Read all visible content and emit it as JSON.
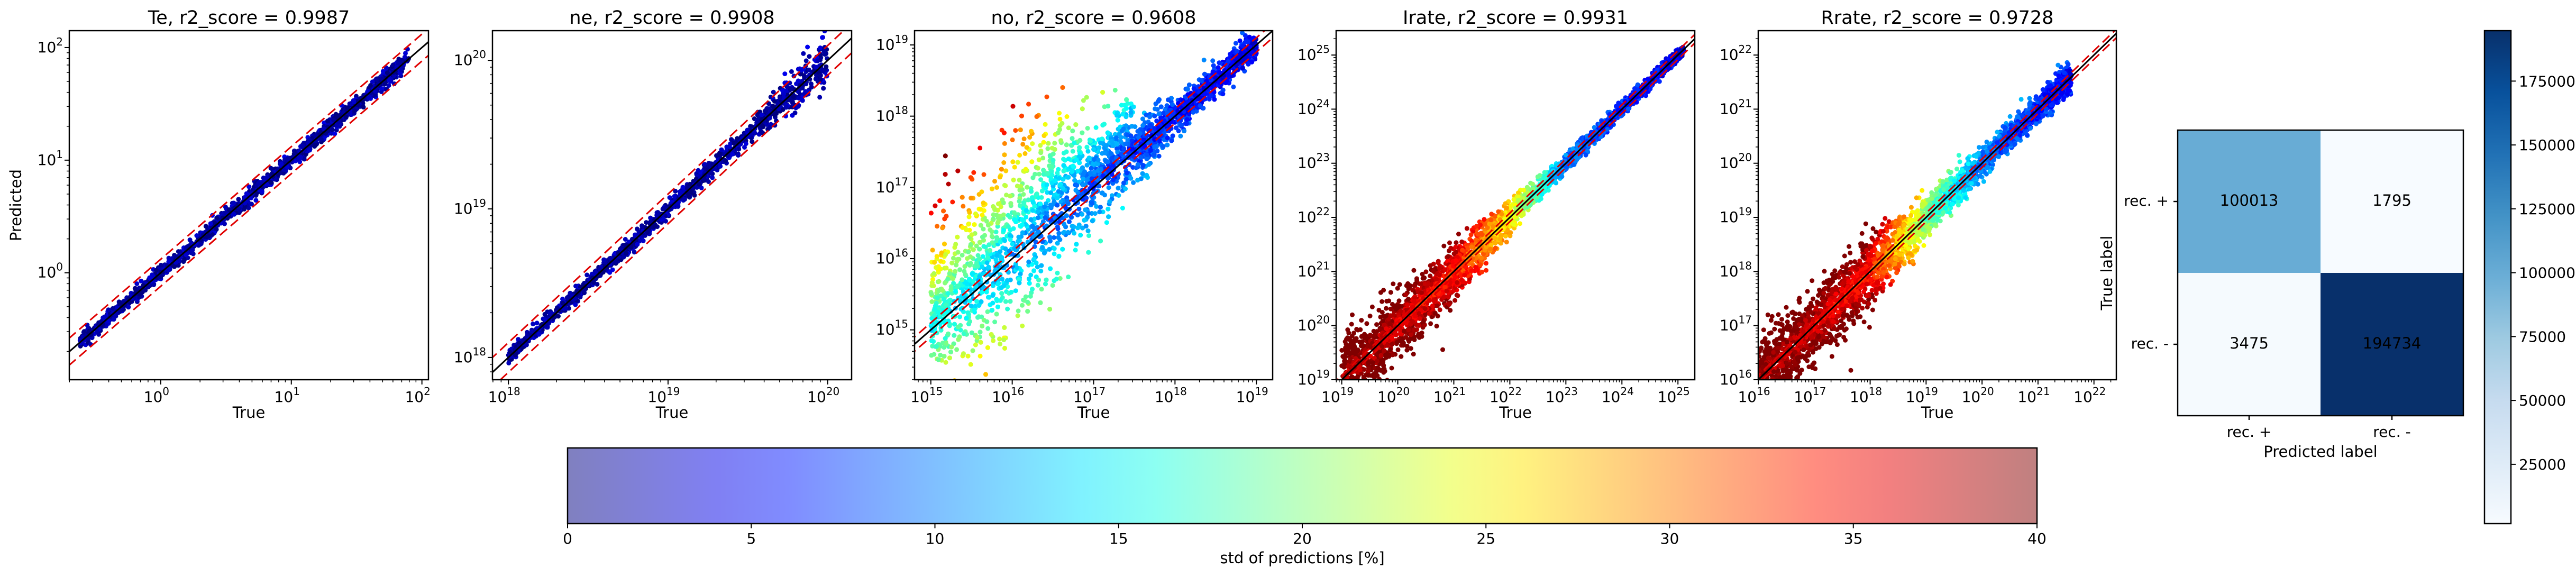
{
  "chart_data": [
    {
      "type": "scatter",
      "title": "Te, r2_score = 0.9987",
      "xlabel": "True",
      "ylabel": "Predicted",
      "log_scale": true,
      "xlim_exp": [
        -0.7,
        2.05
      ],
      "ylim_exp": [
        -0.95,
        2.15
      ],
      "x_ticks": [
        {
          "exp": 0,
          "label": "10",
          "sup": "0"
        },
        {
          "exp": 1,
          "label": "10",
          "sup": "1"
        },
        {
          "exp": 2,
          "label": "10",
          "sup": "2"
        }
      ],
      "y_ticks": [
        {
          "exp": 0,
          "label": "10",
          "sup": "0"
        },
        {
          "exp": 1,
          "label": "10",
          "sup": "1"
        },
        {
          "exp": 2,
          "label": "10",
          "sup": "2"
        }
      ],
      "data_range_exp": [
        -0.62,
        1.9
      ],
      "band_dex": 0.12,
      "spread": [
        [
          -0.62,
          0.03
        ],
        [
          1.9,
          0.04
        ]
      ],
      "color_profile": [
        [
          -0.62,
          1
        ],
        [
          1.9,
          1
        ]
      ],
      "point_count": 1200,
      "points_min_exp": -0.62,
      "points_max_exp": 1.9
    },
    {
      "type": "scatter",
      "title": "ne, r2_score = 0.9908",
      "xlabel": "True",
      "ylabel": "",
      "log_scale": true,
      "xlim_exp": [
        17.9,
        20.15
      ],
      "ylim_exp": [
        17.85,
        20.2
      ],
      "x_ticks": [
        {
          "exp": 18,
          "label": "10",
          "sup": "18"
        },
        {
          "exp": 19,
          "label": "10",
          "sup": "19"
        },
        {
          "exp": 20,
          "label": "10",
          "sup": "20"
        }
      ],
      "y_ticks": [
        {
          "exp": 18,
          "label": "10",
          "sup": "18"
        },
        {
          "exp": 19,
          "label": "10",
          "sup": "19"
        },
        {
          "exp": 20,
          "label": "10",
          "sup": "20"
        }
      ],
      "data_range_exp": [
        18.0,
        20.0
      ],
      "band_dex": 0.1,
      "spread": [
        [
          18.0,
          0.02
        ],
        [
          19.5,
          0.03
        ],
        [
          20.0,
          0.1
        ]
      ],
      "color_profile": [
        [
          18.0,
          1
        ],
        [
          20.0,
          1
        ]
      ],
      "point_count": 1200,
      "points_min_exp": 18.0,
      "points_max_exp": 20.0
    },
    {
      "type": "scatter",
      "title": "no, r2_score = 0.9608",
      "xlabel": "True",
      "ylabel": "",
      "log_scale": true,
      "xlim_exp": [
        14.8,
        19.2
      ],
      "ylim_exp": [
        14.3,
        19.2
      ],
      "x_ticks": [
        {
          "exp": 15,
          "label": "10",
          "sup": "15"
        },
        {
          "exp": 16,
          "label": "10",
          "sup": "16"
        },
        {
          "exp": 17,
          "label": "10",
          "sup": "17"
        },
        {
          "exp": 18,
          "label": "10",
          "sup": "18"
        },
        {
          "exp": 19,
          "label": "10",
          "sup": "19"
        }
      ],
      "y_ticks": [
        {
          "exp": 15,
          "label": "10",
          "sup": "15"
        },
        {
          "exp": 16,
          "label": "10",
          "sup": "16"
        },
        {
          "exp": 17,
          "label": "10",
          "sup": "17"
        },
        {
          "exp": 18,
          "label": "10",
          "sup": "18"
        },
        {
          "exp": 19,
          "label": "10",
          "sup": "19"
        }
      ],
      "data_range_exp": [
        15.0,
        19.0
      ],
      "band_dex": 0.1,
      "spread": [
        [
          15.0,
          0.45
        ],
        [
          16.0,
          0.55
        ],
        [
          17.0,
          0.35
        ],
        [
          18.0,
          0.12
        ],
        [
          19.0,
          0.1
        ]
      ],
      "color_profile": [
        [
          15.0,
          15
        ],
        [
          16.5,
          8
        ],
        [
          19.0,
          3
        ]
      ],
      "point_count": 3500,
      "points_min_exp": 15.0,
      "points_max_exp": 19.0
    },
    {
      "type": "scatter",
      "title": "Irate, r2_score = 0.9931",
      "xlabel": "True",
      "ylabel": "",
      "log_scale": true,
      "xlim_exp": [
        18.9,
        25.3
      ],
      "ylim_exp": [
        19.0,
        25.45
      ],
      "x_ticks": [
        {
          "exp": 19,
          "label": "10",
          "sup": "19"
        },
        {
          "exp": 20,
          "label": "10",
          "sup": "20"
        },
        {
          "exp": 21,
          "label": "10",
          "sup": "21"
        },
        {
          "exp": 22,
          "label": "10",
          "sup": "22"
        },
        {
          "exp": 23,
          "label": "10",
          "sup": "23"
        },
        {
          "exp": 24,
          "label": "10",
          "sup": "24"
        },
        {
          "exp": 25,
          "label": "10",
          "sup": "25"
        }
      ],
      "y_ticks": [
        {
          "exp": 19,
          "label": "10",
          "sup": "19"
        },
        {
          "exp": 20,
          "label": "10",
          "sup": "20"
        },
        {
          "exp": 21,
          "label": "10",
          "sup": "21"
        },
        {
          "exp": 22,
          "label": "10",
          "sup": "22"
        },
        {
          "exp": 23,
          "label": "10",
          "sup": "23"
        },
        {
          "exp": 24,
          "label": "10",
          "sup": "24"
        },
        {
          "exp": 25,
          "label": "10",
          "sup": "25"
        }
      ],
      "data_range_exp": [
        19.0,
        25.1
      ],
      "band_dex": 0.08,
      "spread": [
        [
          19.0,
          0.35
        ],
        [
          21.0,
          0.25
        ],
        [
          22.5,
          0.08
        ],
        [
          25.1,
          0.05
        ]
      ],
      "color_profile": [
        [
          19.0,
          38
        ],
        [
          21.0,
          33
        ],
        [
          22.0,
          24
        ],
        [
          23.0,
          8
        ],
        [
          25.1,
          3
        ]
      ],
      "point_count": 3000,
      "points_min_exp": 19.0,
      "points_max_exp": 25.1
    },
    {
      "type": "scatter",
      "title": "Rrate, r2_score = 0.9728",
      "xlabel": "True",
      "ylabel": "",
      "log_scale": true,
      "xlim_exp": [
        16.0,
        22.4
      ],
      "ylim_exp": [
        16.0,
        22.45
      ],
      "x_ticks": [
        {
          "exp": 16,
          "label": "10",
          "sup": "16"
        },
        {
          "exp": 17,
          "label": "10",
          "sup": "17"
        },
        {
          "exp": 18,
          "label": "10",
          "sup": "18"
        },
        {
          "exp": 19,
          "label": "10",
          "sup": "19"
        },
        {
          "exp": 20,
          "label": "10",
          "sup": "20"
        },
        {
          "exp": 21,
          "label": "10",
          "sup": "21"
        },
        {
          "exp": 22,
          "label": "10",
          "sup": "22"
        }
      ],
      "y_ticks": [
        {
          "exp": 16,
          "label": "10",
          "sup": "16"
        },
        {
          "exp": 17,
          "label": "10",
          "sup": "17"
        },
        {
          "exp": 18,
          "label": "10",
          "sup": "18"
        },
        {
          "exp": 19,
          "label": "10",
          "sup": "19"
        },
        {
          "exp": 20,
          "label": "10",
          "sup": "20"
        },
        {
          "exp": 21,
          "label": "10",
          "sup": "21"
        },
        {
          "exp": 22,
          "label": "10",
          "sup": "22"
        }
      ],
      "data_range_exp": [
        16.0,
        21.6
      ],
      "band_dex": 0.08,
      "spread": [
        [
          16.0,
          0.35
        ],
        [
          18.0,
          0.3
        ],
        [
          19.5,
          0.15
        ],
        [
          21.0,
          0.12
        ],
        [
          21.6,
          0.15
        ]
      ],
      "color_profile": [
        [
          16.0,
          38
        ],
        [
          18.0,
          33
        ],
        [
          19.0,
          18
        ],
        [
          20.0,
          8
        ],
        [
          21.6,
          3
        ]
      ],
      "point_count": 3000,
      "points_min_exp": 16.0,
      "points_max_exp": 21.6
    }
  ],
  "confusion_matrix": {
    "type": "heatmap",
    "xlabel": "Predicted label",
    "ylabel": "True label",
    "x_tick_labels": [
      "rec. +",
      "rec. -"
    ],
    "y_tick_labels": [
      "rec. +",
      "rec. -"
    ],
    "values": [
      [
        100013,
        1795
      ],
      [
        3475,
        194734
      ]
    ],
    "cells": [
      [
        "100013",
        "1795"
      ],
      [
        "3475",
        "194734"
      ]
    ],
    "colormap": "Blues",
    "vmin": 1795,
    "vmax": 194734,
    "colorbar_ticks": [
      25000,
      50000,
      75000,
      100000,
      125000,
      150000,
      175000
    ],
    "colorbar_labels": [
      "25000",
      "50000",
      "75000",
      "100000",
      "125000",
      "150000",
      "175000"
    ]
  },
  "std_colorbar": {
    "label": "std of predictions [%]",
    "range": [
      0,
      40
    ],
    "ticks": [
      0,
      5,
      10,
      15,
      20,
      25,
      30,
      35,
      40
    ],
    "tick_labels": [
      "0",
      "5",
      "10",
      "15",
      "20",
      "25",
      "30",
      "35",
      "40"
    ],
    "colormap": "jet",
    "alpha": 0.5
  }
}
